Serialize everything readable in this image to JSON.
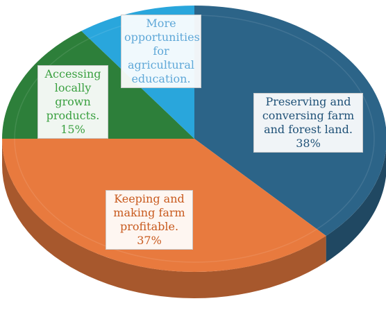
{
  "chart_data": {
    "type": "pie",
    "style": "3d",
    "slices": [
      {
        "label": "Preserving and conversing farm and forest land.",
        "value": 38,
        "value_label": "38%",
        "color": "#2c6488"
      },
      {
        "label": "Keeping and making farm profitable.",
        "value": 37,
        "value_label": "37%",
        "color": "#e87a3e"
      },
      {
        "label": "Accessing locally grown products.",
        "value": 15,
        "value_label": "15%",
        "color": "#2d7f3a"
      },
      {
        "label": "More opportunities for agricultural education.",
        "value": 10,
        "value_label": "",
        "color": "#29a6dc"
      }
    ],
    "label_colors": [
      "#1f5177",
      "#c85a1e",
      "#3aa040",
      "#5fa8d8"
    ],
    "legend": "none"
  }
}
